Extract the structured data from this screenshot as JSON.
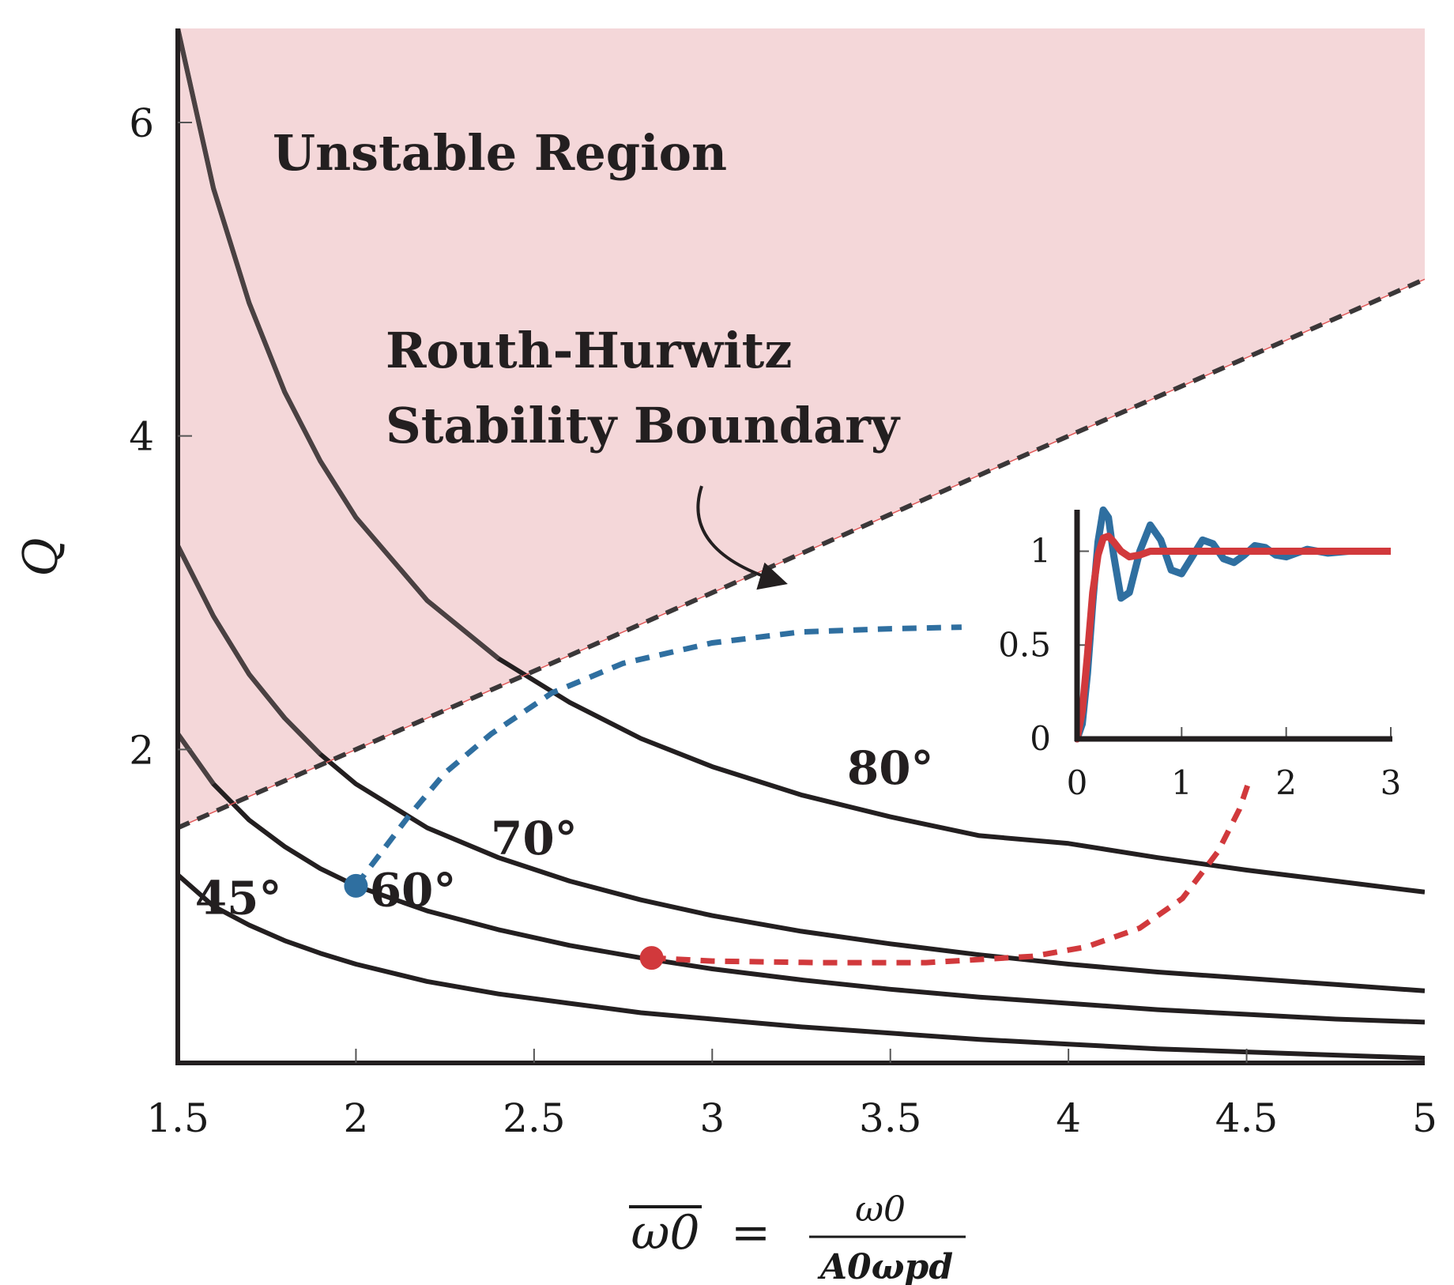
{
  "chart_data": {
    "type": "line",
    "xlabel_lhs": "ω0",
    "xlabel_eq": "=",
    "xlabel_num": "ω0",
    "xlabel_den": "A0ωpd",
    "ylabel": "Q",
    "xlim": [
      1.5,
      5
    ],
    "ylim": [
      0,
      6.6
    ],
    "xticks": [
      "1.5",
      "2",
      "2.5",
      "3",
      "3.5",
      "4",
      "4.5",
      "5"
    ],
    "yticks": [
      "2",
      "4",
      "6"
    ],
    "region_label": "Unstable Region",
    "boundary_label_line1": "Routh-Hurwitz",
    "boundary_label_line2": "Stability Boundary",
    "boundary": {
      "x": [
        1.5,
        5
      ],
      "y": [
        1.5,
        5.0
      ]
    },
    "series": [
      {
        "name": "45°",
        "x": [
          1.5,
          1.6,
          1.7,
          1.8,
          1.9,
          2.0,
          2.2,
          2.4,
          2.6,
          2.8,
          3.0,
          3.25,
          3.5,
          3.75,
          4.0,
          4.25,
          4.5,
          4.75,
          5.0
        ],
        "y": [
          1.2,
          1.0,
          0.88,
          0.78,
          0.7,
          0.63,
          0.52,
          0.44,
          0.38,
          0.32,
          0.28,
          0.23,
          0.19,
          0.15,
          0.12,
          0.09,
          0.07,
          0.05,
          0.03
        ]
      },
      {
        "name": "60°",
        "x": [
          1.5,
          1.6,
          1.7,
          1.8,
          1.9,
          2.0,
          2.2,
          2.4,
          2.6,
          2.8,
          3.0,
          3.25,
          3.5,
          3.75,
          4.0,
          4.25,
          4.5,
          4.75,
          5.0
        ],
        "y": [
          2.1,
          1.78,
          1.55,
          1.38,
          1.24,
          1.13,
          0.97,
          0.85,
          0.75,
          0.67,
          0.6,
          0.53,
          0.47,
          0.42,
          0.38,
          0.34,
          0.31,
          0.28,
          0.26
        ]
      },
      {
        "name": "70°",
        "x": [
          1.5,
          1.6,
          1.7,
          1.8,
          1.9,
          2.0,
          2.2,
          2.4,
          2.6,
          2.8,
          3.0,
          3.25,
          3.5,
          3.75,
          4.0,
          4.25,
          4.5,
          4.75,
          5.0
        ],
        "y": [
          3.3,
          2.85,
          2.48,
          2.2,
          1.97,
          1.78,
          1.5,
          1.31,
          1.16,
          1.04,
          0.94,
          0.84,
          0.76,
          0.69,
          0.63,
          0.58,
          0.54,
          0.5,
          0.46
        ]
      },
      {
        "name": "80°",
        "x": [
          1.5,
          1.6,
          1.7,
          1.8,
          1.9,
          2.0,
          2.2,
          2.4,
          2.6,
          2.8,
          3.0,
          3.25,
          3.5,
          3.75,
          4.0,
          4.25,
          4.5,
          4.75,
          5.0
        ],
        "y": [
          6.6,
          5.58,
          4.85,
          4.28,
          3.84,
          3.48,
          2.95,
          2.58,
          2.3,
          2.07,
          1.89,
          1.71,
          1.57,
          1.45,
          1.4,
          1.31,
          1.23,
          1.16,
          1.09
        ]
      }
    ],
    "trajectories": [
      {
        "name": "blue-trajectory",
        "color": "#2f6fa0",
        "x": [
          2.0,
          2.07,
          2.15,
          2.25,
          2.38,
          2.55,
          2.75,
          3.0,
          3.25,
          3.5,
          3.7
        ],
        "y": [
          1.13,
          1.34,
          1.58,
          1.85,
          2.1,
          2.36,
          2.55,
          2.68,
          2.75,
          2.77,
          2.78
        ]
      },
      {
        "name": "red-trajectory",
        "color": "#d1393c",
        "x": [
          2.83,
          3.0,
          3.3,
          3.6,
          3.9,
          4.05,
          4.2,
          4.32,
          4.42,
          4.48,
          4.51
        ],
        "y": [
          0.67,
          0.65,
          0.64,
          0.64,
          0.68,
          0.74,
          0.86,
          1.05,
          1.35,
          1.62,
          1.82
        ]
      }
    ],
    "markers": [
      {
        "name": "blue-point",
        "x": 2.0,
        "y": 1.13,
        "color": "#2f6fa0"
      },
      {
        "name": "red-point",
        "x": 2.83,
        "y": 0.67,
        "color": "#d1393c"
      }
    ],
    "label_positions": [
      {
        "name": "45°",
        "x": 1.67,
        "y": 0.95
      },
      {
        "name": "60°",
        "x": 2.16,
        "y": 1.0
      },
      {
        "name": "70°",
        "x": 2.5,
        "y": 1.33
      },
      {
        "name": "80°",
        "x": 3.5,
        "y": 1.78
      }
    ],
    "inset": {
      "type": "line",
      "xlim": [
        0,
        3
      ],
      "ylim": [
        0,
        1.2
      ],
      "xticks": [
        "0",
        "1",
        "2",
        "3"
      ],
      "yticks": [
        "0",
        "0.5",
        "1"
      ],
      "series": [
        {
          "name": "blue-step-response",
          "color": "#2f6fa0",
          "x": [
            0,
            0.05,
            0.1,
            0.15,
            0.2,
            0.25,
            0.3,
            0.35,
            0.42,
            0.5,
            0.6,
            0.7,
            0.8,
            0.9,
            1.0,
            1.1,
            1.2,
            1.3,
            1.4,
            1.5,
            1.6,
            1.7,
            1.8,
            1.9,
            2.0,
            2.2,
            2.4,
            2.6,
            2.8,
            3.0
          ],
          "y": [
            0,
            0.08,
            0.35,
            0.72,
            1.05,
            1.22,
            1.18,
            0.98,
            0.75,
            0.78,
            1.0,
            1.14,
            1.06,
            0.9,
            0.88,
            0.97,
            1.06,
            1.04,
            0.96,
            0.94,
            0.98,
            1.03,
            1.02,
            0.98,
            0.97,
            1.01,
            0.99,
            1.0,
            1.0,
            1.0
          ]
        },
        {
          "name": "red-step-response",
          "color": "#d1393c",
          "x": [
            0,
            0.05,
            0.1,
            0.15,
            0.2,
            0.25,
            0.3,
            0.35,
            0.42,
            0.5,
            0.6,
            0.7,
            0.8,
            1.0,
            1.5,
            2.0,
            3.0
          ],
          "y": [
            0,
            0.15,
            0.45,
            0.78,
            0.98,
            1.07,
            1.08,
            1.05,
            1.0,
            0.97,
            0.98,
            1.0,
            1.0,
            1.0,
            1.0,
            1.0,
            1.0
          ]
        }
      ]
    }
  },
  "colors": {
    "unstable_fill": "#f4d7d9",
    "curve": "#231f20",
    "curve_in_region": "#4a4142",
    "boundary_dash": "#3a3738",
    "boundary_line": "#e05a5a"
  }
}
